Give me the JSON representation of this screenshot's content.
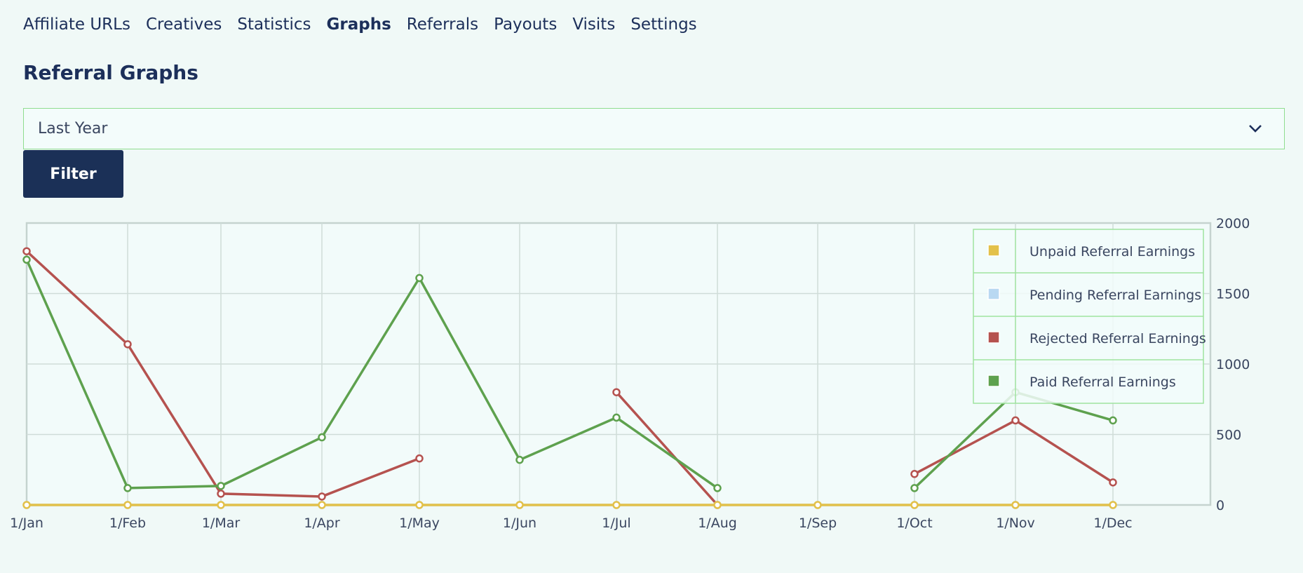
{
  "nav": {
    "items": [
      "Affiliate URLs",
      "Creatives",
      "Statistics",
      "Graphs",
      "Referrals",
      "Payouts",
      "Visits",
      "Settings"
    ],
    "active": "Graphs"
  },
  "page_title": "Referral Graphs",
  "period_select": {
    "value": "Last Year"
  },
  "filter_button": "Filter",
  "chart_data": {
    "type": "line",
    "categories": [
      "1/Jan",
      "1/Feb",
      "1/Mar",
      "1/Apr",
      "1/May",
      "1/Jun",
      "1/Jul",
      "1/Aug",
      "1/Sep",
      "1/Oct",
      "1/Nov",
      "1/Dec"
    ],
    "ylim": [
      0,
      2000
    ],
    "yticks": [
      0,
      500,
      1000,
      1500,
      2000
    ],
    "y_axis_position": "right",
    "grid": true,
    "legend_position": "top-right",
    "series": [
      {
        "name": "Unpaid Referral Earnings",
        "color": "#e3c14a",
        "values": [
          0,
          0,
          0,
          0,
          0,
          0,
          0,
          0,
          0,
          0,
          0,
          0
        ]
      },
      {
        "name": "Pending Referral Earnings",
        "color": "#b9d8f2",
        "values": [
          0,
          0,
          0,
          0,
          0,
          0,
          0,
          0,
          0,
          0,
          0,
          0
        ]
      },
      {
        "name": "Rejected Referral Earnings",
        "color": "#b5524f",
        "values": [
          1800,
          1140,
          80,
          60,
          330,
          null,
          800,
          0,
          null,
          220,
          600,
          160
        ]
      },
      {
        "name": "Paid Referral Earnings",
        "color": "#5ea14e",
        "values": [
          1740,
          120,
          135,
          480,
          1610,
          320,
          620,
          120,
          null,
          120,
          800,
          600
        ]
      }
    ]
  }
}
